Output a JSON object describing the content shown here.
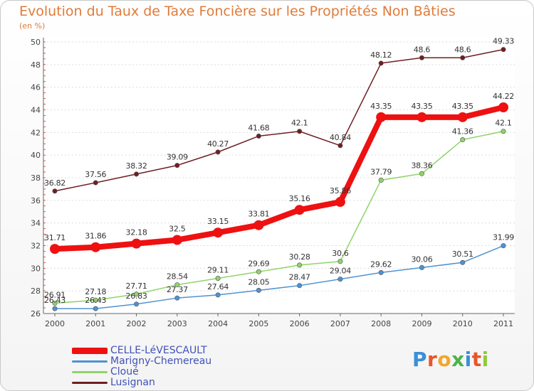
{
  "chart_data": {
    "type": "line",
    "title": "Evolution du Taux de Taxe Foncière sur les Propriétés Non Bâties",
    "ylabel": "(en %)",
    "xlabel": "",
    "x": [
      "2000",
      "2001",
      "2002",
      "2003",
      "2004",
      "2005",
      "2006",
      "2007",
      "2008",
      "2009",
      "2010",
      "2011"
    ],
    "ylim": [
      26,
      50
    ],
    "yticks": [
      26,
      28,
      30,
      32,
      34,
      36,
      38,
      40,
      42,
      44,
      46,
      48,
      50
    ],
    "series": [
      {
        "name": "Lusignan",
        "color": "#6e1f22",
        "labels": [
          "36.82",
          "37.56",
          "38.32",
          "39.09",
          "40.27",
          "41.68",
          "42.1",
          "40.84",
          "48.12",
          "48.6",
          "48.6",
          "49.33"
        ],
        "values": [
          36.82,
          37.56,
          38.32,
          39.09,
          40.27,
          41.68,
          42.1,
          40.84,
          48.12,
          48.6,
          48.6,
          49.33
        ]
      },
      {
        "name": "Cloué",
        "color": "#8fd46a",
        "labels": [
          "26.91",
          "27.18",
          "27.71",
          "28.54",
          "29.11",
          "29.69",
          "30.28",
          "30.6",
          "37.79",
          "38.36",
          "41.36",
          "42.1"
        ],
        "values": [
          26.91,
          27.18,
          27.71,
          28.54,
          29.11,
          29.69,
          30.28,
          30.6,
          37.79,
          38.36,
          41.36,
          42.1
        ]
      },
      {
        "name": "Marigny-Chemereau",
        "color": "#4f93d1",
        "labels": [
          "26.43",
          "26.43",
          "26.83",
          "27.37",
          "27.64",
          "28.05",
          "28.47",
          "29.04",
          "29.62",
          "30.06",
          "30.51",
          "31.99"
        ],
        "values": [
          26.43,
          26.43,
          26.83,
          27.37,
          27.64,
          28.05,
          28.47,
          29.04,
          29.62,
          30.06,
          30.51,
          31.99
        ]
      },
      {
        "name": "CELLE-LéVESCAULT",
        "color": "#ee1111",
        "labels": [
          "31.71",
          "31.86",
          "32.18",
          "32.5",
          "33.15",
          "33.81",
          "35.16",
          "35.86",
          "43.35",
          "43.35",
          "43.35",
          "44.22"
        ],
        "values": [
          31.71,
          31.86,
          32.18,
          32.5,
          33.15,
          33.81,
          35.16,
          35.86,
          43.35,
          43.35,
          43.35,
          44.22
        ]
      }
    ],
    "legend": [
      "CELLE-LéVESCAULT",
      "Marigny-Chemereau",
      "Cloué",
      "Lusignan"
    ]
  },
  "logo": {
    "text": "Proxiti",
    "letters": [
      "P",
      "r",
      "o",
      "x",
      "i",
      "t",
      "i"
    ],
    "colors": [
      "#3b8fd8",
      "#e8552a",
      "#f2a72b",
      "#4bb34b",
      "#3b8fd8",
      "#e8552a",
      "#8fc93a"
    ]
  }
}
